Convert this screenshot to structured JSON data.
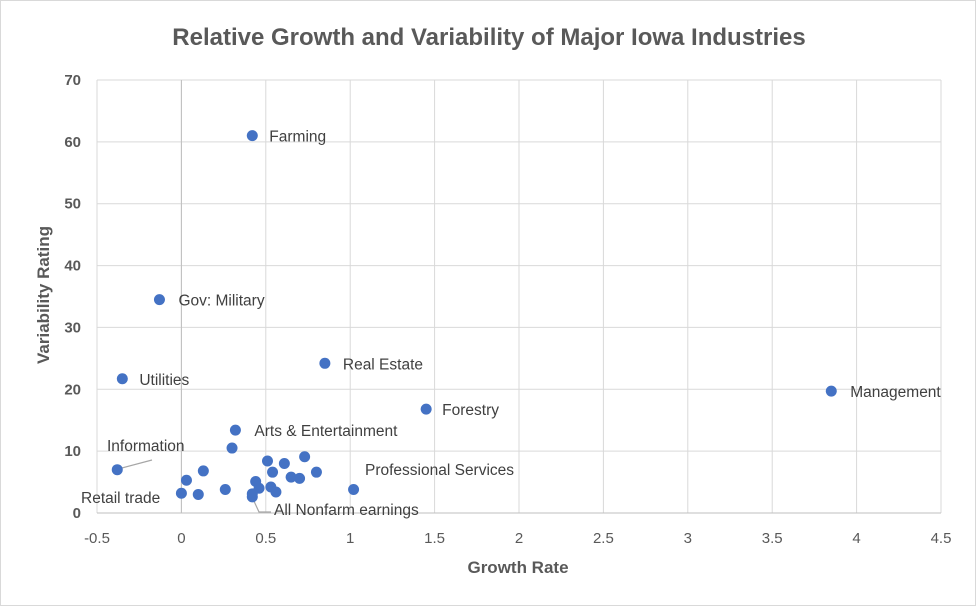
{
  "chart_data": {
    "type": "scatter",
    "title": "Relative Growth and Variability of Major Iowa Industries",
    "xlabel": "Growth Rate",
    "ylabel": "Variability Rating",
    "xlim": [
      -0.5,
      4.5
    ],
    "ylim": [
      0,
      70
    ],
    "x_ticks": [
      -0.5,
      0,
      0.5,
      1,
      1.5,
      2,
      2.5,
      3,
      3.5,
      4,
      4.5
    ],
    "x_tick_labels": [
      "-0.5",
      "0",
      "0.5",
      "1",
      "1.5",
      "2",
      "2.5",
      "3",
      "3.5",
      "4",
      "4.5"
    ],
    "y_ticks": [
      0,
      10,
      20,
      30,
      40,
      50,
      60,
      70
    ],
    "y_tick_labels": [
      "0",
      "10",
      "20",
      "30",
      "40",
      "50",
      "60",
      "70"
    ],
    "grid": true,
    "marker_color": "#4472c4",
    "points": [
      {
        "x": 0.42,
        "y": 61.0,
        "label": "Farming"
      },
      {
        "x": -0.13,
        "y": 34.5,
        "label": "Gov: Military"
      },
      {
        "x": -0.35,
        "y": 21.7,
        "label": "Utilities"
      },
      {
        "x": 0.85,
        "y": 24.2,
        "label": "Real Estate"
      },
      {
        "x": 1.45,
        "y": 16.8,
        "label": "Forestry"
      },
      {
        "x": 3.85,
        "y": 19.7,
        "label": "Management"
      },
      {
        "x": 0.32,
        "y": 13.4,
        "label": "Arts & Entertainment"
      },
      {
        "x": -0.38,
        "y": 7.0,
        "label": "Information"
      },
      {
        "x": 1.02,
        "y": 3.8,
        "label": "Professional Services"
      },
      {
        "x": 0.0,
        "y": 3.2,
        "label": "Retail trade"
      },
      {
        "x": 0.42,
        "y": 2.6,
        "label": "All Nonfarm earnings"
      },
      {
        "x": 0.3,
        "y": 10.5,
        "label": ""
      },
      {
        "x": 0.51,
        "y": 8.4,
        "label": ""
      },
      {
        "x": 0.61,
        "y": 8.0,
        "label": ""
      },
      {
        "x": 0.73,
        "y": 9.1,
        "label": ""
      },
      {
        "x": 0.13,
        "y": 6.8,
        "label": ""
      },
      {
        "x": 0.54,
        "y": 6.6,
        "label": ""
      },
      {
        "x": 0.8,
        "y": 6.6,
        "label": ""
      },
      {
        "x": 0.65,
        "y": 5.8,
        "label": ""
      },
      {
        "x": 0.7,
        "y": 5.6,
        "label": ""
      },
      {
        "x": 0.03,
        "y": 5.3,
        "label": ""
      },
      {
        "x": 0.44,
        "y": 5.1,
        "label": ""
      },
      {
        "x": 0.46,
        "y": 4.0,
        "label": ""
      },
      {
        "x": 0.53,
        "y": 4.2,
        "label": ""
      },
      {
        "x": 0.56,
        "y": 3.4,
        "label": ""
      },
      {
        "x": 0.26,
        "y": 3.8,
        "label": ""
      },
      {
        "x": 0.1,
        "y": 3.0,
        "label": ""
      },
      {
        "x": 0.42,
        "y": 3.1,
        "label": ""
      }
    ]
  }
}
